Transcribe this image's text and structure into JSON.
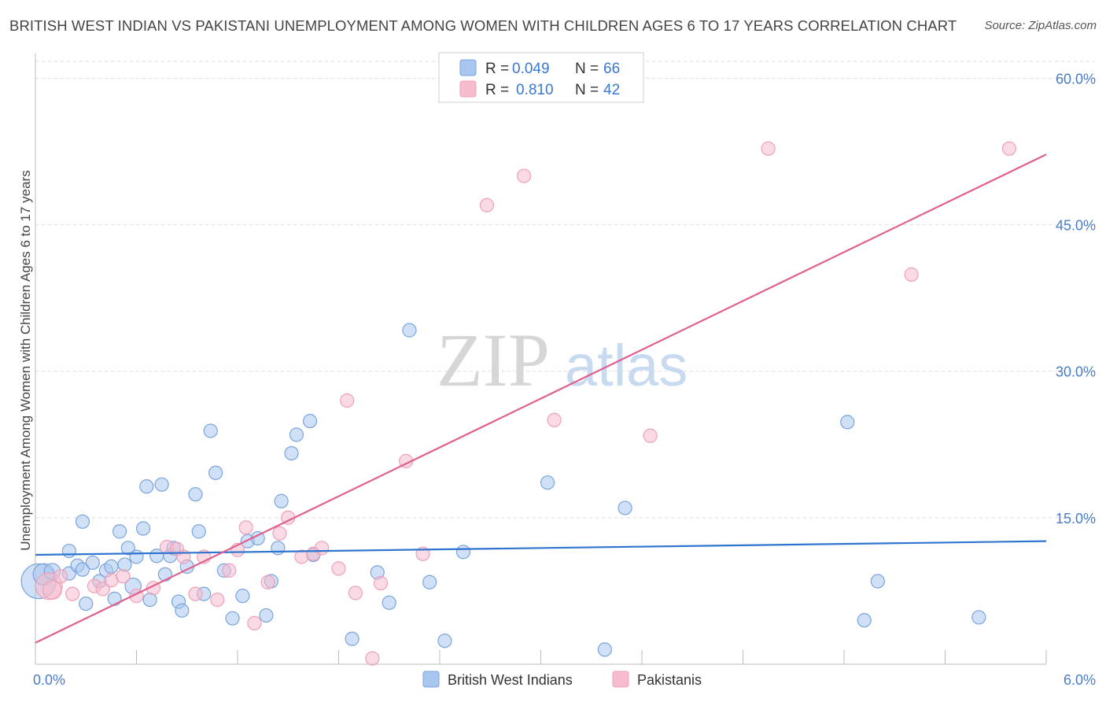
{
  "title": "BRITISH WEST INDIAN VS PAKISTANI UNEMPLOYMENT AMONG WOMEN WITH CHILDREN AGES 6 TO 17 YEARS CORRELATION CHART",
  "source": "Source: ZipAtlas.com",
  "watermark": {
    "zip": "ZIP",
    "atlas": "atlas"
  },
  "colors": {
    "blue_fill": "#a9c6ef",
    "blue_stroke": "#7aa4dc",
    "blue_line": "#2f74cf",
    "pink_fill": "#f6bccd",
    "pink_stroke": "#eea0b8",
    "pink_line": "#e0608f",
    "tick": "#4a7cc9"
  },
  "legend": {
    "items": [
      {
        "r_label": "R =",
        "r_value": "0.049",
        "n_label": "N =",
        "n_value": "66"
      },
      {
        "r_label": "R =",
        "r_value": "0.810",
        "n_label": "N =",
        "n_value": "42"
      }
    ]
  },
  "bottom_legend": [
    "British West Indians",
    "Pakistanis"
  ],
  "chart_data": {
    "type": "scatter",
    "title": "BRITISH WEST INDIAN VS PAKISTANI UNEMPLOYMENT AMONG WOMEN WITH CHILDREN AGES 6 TO 17 YEARS CORRELATION CHART",
    "xlabel": "",
    "ylabel": "Unemployment Among Women with Children Ages 6 to 17 years",
    "xlim": [
      0,
      6
    ],
    "ylim": [
      0,
      62
    ],
    "x_tick_labels": [
      "0.0%",
      "6.0%"
    ],
    "y_ticks": [
      15,
      30,
      45,
      60
    ],
    "y_tick_labels": [
      "15.0%",
      "30.0%",
      "45.0%",
      "60.0%"
    ],
    "grid": true,
    "legend_position": "top-center",
    "series": [
      {
        "name": "British West Indians",
        "color": "#a9c6ef",
        "trend": {
          "x": [
            0,
            6
          ],
          "y": [
            11.2,
            12.6
          ]
        },
        "points": [
          [
            0.02,
            8.5,
            26
          ],
          [
            0.05,
            9.2,
            16
          ],
          [
            0.1,
            9.5,
            12
          ],
          [
            0.2,
            9.3,
            10
          ],
          [
            0.25,
            10.1,
            10
          ],
          [
            0.2,
            11.6,
            10
          ],
          [
            0.28,
            9.7,
            10
          ],
          [
            0.28,
            14.6,
            10
          ],
          [
            0.3,
            6.2,
            10
          ],
          [
            0.34,
            10.4,
            10
          ],
          [
            0.38,
            8.5,
            10
          ],
          [
            0.42,
            9.6,
            10
          ],
          [
            0.45,
            10.0,
            10
          ],
          [
            0.47,
            6.7,
            10
          ],
          [
            0.5,
            13.6,
            10
          ],
          [
            0.53,
            10.2,
            10
          ],
          [
            0.55,
            11.9,
            10
          ],
          [
            0.58,
            8.0,
            12
          ],
          [
            0.6,
            11.0,
            10
          ],
          [
            0.64,
            13.9,
            10
          ],
          [
            0.66,
            18.2,
            10
          ],
          [
            0.68,
            6.6,
            10
          ],
          [
            0.72,
            11.1,
            10
          ],
          [
            0.75,
            18.4,
            10
          ],
          [
            0.77,
            9.2,
            10
          ],
          [
            0.8,
            11.1,
            10
          ],
          [
            0.82,
            11.9,
            10
          ],
          [
            0.85,
            6.4,
            10
          ],
          [
            0.87,
            5.5,
            10
          ],
          [
            0.9,
            10.0,
            10
          ],
          [
            0.95,
            17.4,
            10
          ],
          [
            0.97,
            13.6,
            10
          ],
          [
            1.0,
            7.2,
            10
          ],
          [
            1.04,
            23.9,
            10
          ],
          [
            1.07,
            19.6,
            10
          ],
          [
            1.12,
            9.6,
            10
          ],
          [
            1.17,
            4.7,
            10
          ],
          [
            1.23,
            7.0,
            10
          ],
          [
            1.26,
            12.6,
            10
          ],
          [
            1.32,
            12.9,
            10
          ],
          [
            1.37,
            5.0,
            10
          ],
          [
            1.4,
            8.5,
            10
          ],
          [
            1.44,
            11.9,
            10
          ],
          [
            1.46,
            16.7,
            10
          ],
          [
            1.52,
            21.6,
            10
          ],
          [
            1.55,
            23.5,
            10
          ],
          [
            1.63,
            24.9,
            10
          ],
          [
            1.65,
            11.2,
            10
          ],
          [
            1.88,
            2.6,
            10
          ],
          [
            2.03,
            9.4,
            10
          ],
          [
            2.1,
            6.3,
            10
          ],
          [
            2.22,
            34.2,
            10
          ],
          [
            2.34,
            8.4,
            10
          ],
          [
            2.43,
            2.4,
            10
          ],
          [
            2.54,
            11.5,
            10
          ],
          [
            3.04,
            18.6,
            10
          ],
          [
            3.38,
            1.5,
            10
          ],
          [
            3.5,
            16.0,
            10
          ],
          [
            4.82,
            24.8,
            10
          ],
          [
            4.92,
            4.5,
            10
          ],
          [
            5.0,
            8.5,
            10
          ],
          [
            5.6,
            4.8,
            10
          ]
        ]
      },
      {
        "name": "Pakistanis",
        "color": "#f6bccd",
        "trend": {
          "x": [
            0,
            6
          ],
          "y": [
            2.2,
            52.2
          ]
        },
        "points": [
          [
            0.08,
            8.0,
            20
          ],
          [
            0.1,
            7.6,
            14
          ],
          [
            0.15,
            9.0,
            10
          ],
          [
            0.22,
            7.2,
            10
          ],
          [
            0.35,
            8.0,
            10
          ],
          [
            0.4,
            7.7,
            10
          ],
          [
            0.45,
            8.6,
            10
          ],
          [
            0.52,
            9.0,
            10
          ],
          [
            0.6,
            7.0,
            10
          ],
          [
            0.7,
            7.8,
            10
          ],
          [
            0.78,
            12.0,
            10
          ],
          [
            0.84,
            11.8,
            10
          ],
          [
            0.88,
            11.0,
            10
          ],
          [
            0.95,
            7.2,
            10
          ],
          [
            1.0,
            11.0,
            10
          ],
          [
            1.08,
            6.6,
            10
          ],
          [
            1.15,
            9.6,
            10
          ],
          [
            1.2,
            11.7,
            10
          ],
          [
            1.25,
            14.0,
            10
          ],
          [
            1.3,
            4.2,
            10
          ],
          [
            1.38,
            8.4,
            10
          ],
          [
            1.45,
            13.4,
            10
          ],
          [
            1.5,
            15.0,
            10
          ],
          [
            1.58,
            11.0,
            10
          ],
          [
            1.65,
            11.3,
            10
          ],
          [
            1.7,
            11.9,
            10
          ],
          [
            1.8,
            9.8,
            10
          ],
          [
            1.85,
            27.0,
            10
          ],
          [
            1.9,
            7.3,
            10
          ],
          [
            2.0,
            0.6,
            10
          ],
          [
            2.05,
            8.3,
            10
          ],
          [
            2.2,
            20.8,
            10
          ],
          [
            2.3,
            11.3,
            10
          ],
          [
            2.68,
            47.0,
            10
          ],
          [
            2.9,
            50.0,
            10
          ],
          [
            3.08,
            25.0,
            10
          ],
          [
            3.65,
            23.4,
            10
          ],
          [
            4.35,
            52.8,
            10
          ],
          [
            5.2,
            39.9,
            10
          ],
          [
            5.78,
            52.8,
            10
          ]
        ]
      }
    ]
  }
}
